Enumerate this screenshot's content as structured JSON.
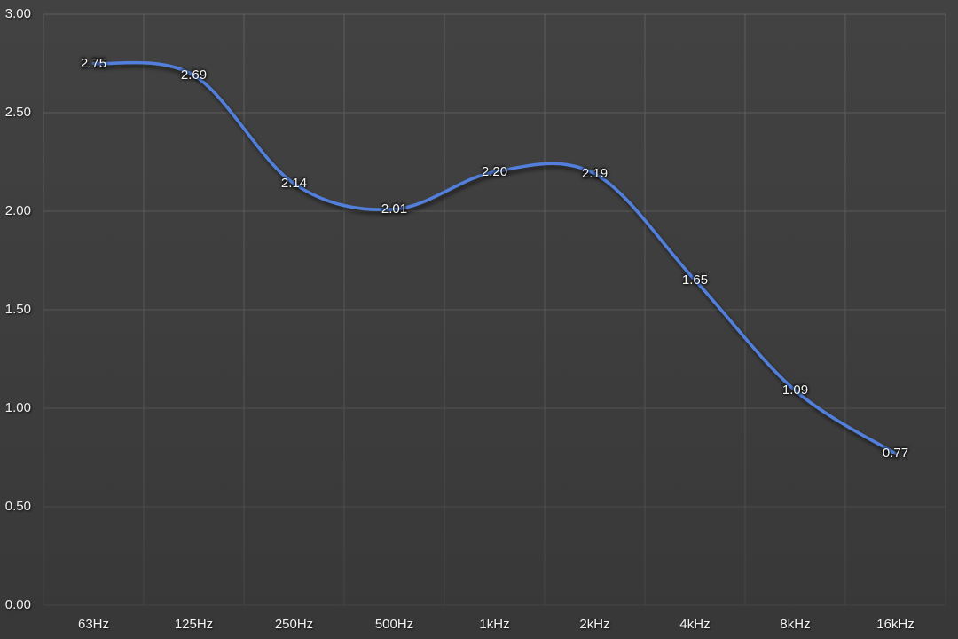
{
  "chart_data": {
    "type": "line",
    "categories": [
      "63Hz",
      "125Hz",
      "250Hz",
      "500Hz",
      "1kHz",
      "2kHz",
      "4kHz",
      "8kHz",
      "16kHz"
    ],
    "values": [
      2.75,
      2.69,
      2.14,
      2.01,
      2.2,
      2.19,
      1.65,
      1.09,
      0.77
    ],
    "data_labels": [
      "2.75",
      "2.69",
      "2.14",
      "2.01",
      "2.20",
      "2.19",
      "1.65",
      "1.09",
      "0.77"
    ],
    "y_ticks": [
      "3.00",
      "2.50",
      "2.00",
      "1.50",
      "1.00",
      "0.50",
      "0.00"
    ],
    "ylim": [
      0,
      3
    ],
    "ytick_step": 0.5,
    "title": "",
    "xlabel": "",
    "ylabel": "",
    "grid": true,
    "legend": false,
    "smooth": true,
    "colors": {
      "background": "#3d3d3d",
      "gridline": "#5e5e5e",
      "line": "#517fdb",
      "label_text": "#f2f2f2"
    }
  }
}
